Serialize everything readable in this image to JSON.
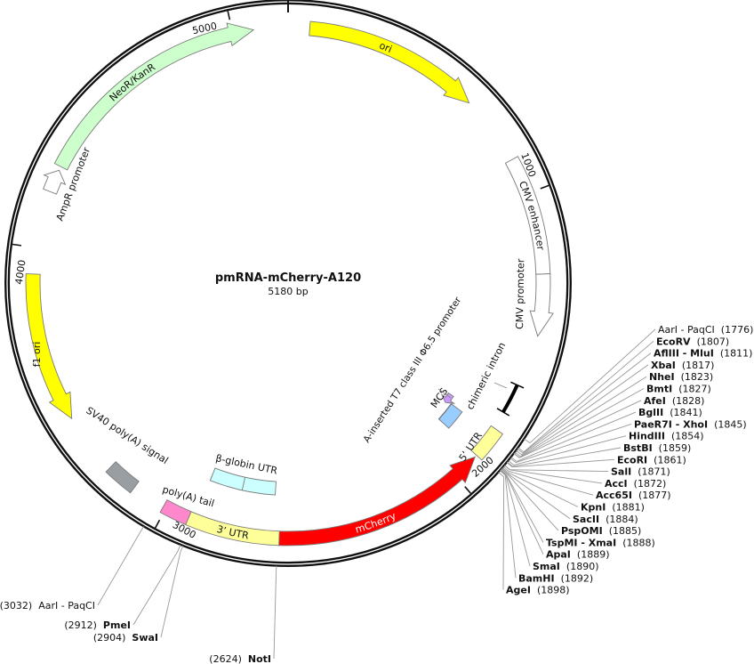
{
  "plasmid": {
    "name": "pmRNA-mCherry-A120",
    "length_label": "5180 bp",
    "length_bp": 5180
  },
  "ticks": [
    {
      "pos": 1000,
      "label": "1000"
    },
    {
      "pos": 2000,
      "label": "2000"
    },
    {
      "pos": 3000,
      "label": "3000"
    },
    {
      "pos": 4000,
      "label": "4000"
    },
    {
      "pos": 5000,
      "label": "5000"
    }
  ],
  "features": [
    {
      "id": "ori",
      "label": "ori",
      "start": 70,
      "end": 650,
      "direction": "forward",
      "color": "#ffff00",
      "text_color": "#111111"
    },
    {
      "id": "cmv-enhancer",
      "label": "CMV enhancer",
      "start": 880,
      "end": 1266,
      "direction": "none",
      "color": "#ffffff",
      "text_color": "#111111"
    },
    {
      "id": "cmv-promoter",
      "label": "CMV promoter",
      "start": 1266,
      "end": 1468,
      "direction": "forward",
      "color": "#ffffff",
      "text_color": "#111111"
    },
    {
      "id": "chimeric-intron",
      "label": "chimeric intron",
      "start": 1640,
      "end": 1740,
      "direction": "none",
      "color": "#000000",
      "text_color": "#111111"
    },
    {
      "id": "t7-promoter",
      "label": "A-inserted T7 class III Φ6.5 promoter",
      "start": 1790,
      "end": 1830,
      "direction": "forward",
      "color": "#cc99ff",
      "text_color": "#111111"
    },
    {
      "id": "mcs",
      "label": "MCS",
      "start": 1820,
      "end": 1900,
      "direction": "none",
      "color": "#99ccff",
      "text_color": "#111111"
    },
    {
      "id": "five-utr",
      "label": "5’ UTR",
      "start": 1800,
      "end": 1905,
      "direction": "none",
      "color": "#ffff99",
      "text_color": "#111111"
    },
    {
      "id": "mcherry",
      "label": "mCherry",
      "start": 1912,
      "end": 2619,
      "direction": "reverse",
      "color": "#ff0000",
      "text_color": "#ffffff"
    },
    {
      "id": "three-utr",
      "label": "3’ UTR",
      "start": 2619,
      "end": 2921,
      "direction": "none",
      "color": "#ffff99",
      "text_color": "#111111"
    },
    {
      "id": "beta-globin-utr",
      "label": "β-globin UTR",
      "start": 2640,
      "end": 2900,
      "direction": "none",
      "color": "#ccffff",
      "text_color": "#111111"
    },
    {
      "id": "polya-tail",
      "label": "poly(A) tail",
      "start": 2921,
      "end": 3010,
      "direction": "none",
      "color": "#ff88cc",
      "text_color": "#111111"
    },
    {
      "id": "sv40-polya",
      "label": "SV40 poly(A) signal",
      "start": 3122,
      "end": 3223,
      "direction": "none",
      "color": "#999ea3",
      "text_color": "#111111"
    },
    {
      "id": "f1-ori",
      "label": "f1 ori",
      "start": 3424,
      "end": 3914,
      "direction": "reverse",
      "color": "#ffff00",
      "text_color": "#111111"
    },
    {
      "id": "ampr-promoter",
      "label": "AmpR promoter",
      "start": 4187,
      "end": 4262,
      "direction": "forward",
      "color": "#ffffff",
      "text_color": "#111111"
    },
    {
      "id": "neor-kanr",
      "label": "NeoR/KanR",
      "start": 4275,
      "end": 5068,
      "direction": "forward",
      "color": "#ccffcc",
      "text_color": "#111111"
    }
  ],
  "enzymes_right": [
    {
      "name": "AarI - PaqCI",
      "pos": 1776,
      "pos_label": "(1776)",
      "bold": false
    },
    {
      "name": "EcoRV",
      "pos": 1807,
      "pos_label": "(1807)",
      "bold": true
    },
    {
      "name": "AflIII - MluI",
      "pos": 1811,
      "pos_label": "(1811)",
      "bold": true
    },
    {
      "name": "XbaI",
      "pos": 1817,
      "pos_label": "(1817)",
      "bold": true
    },
    {
      "name": "NheI",
      "pos": 1823,
      "pos_label": "(1823)",
      "bold": true
    },
    {
      "name": "BmtI",
      "pos": 1827,
      "pos_label": "(1827)",
      "bold": true
    },
    {
      "name": "AfeI",
      "pos": 1828,
      "pos_label": "(1828)",
      "bold": true
    },
    {
      "name": "BglII",
      "pos": 1841,
      "pos_label": "(1841)",
      "bold": true
    },
    {
      "name": "PaeR7I - XhoI",
      "pos": 1845,
      "pos_label": "(1845)",
      "bold": true
    },
    {
      "name": "HindIII",
      "pos": 1854,
      "pos_label": "(1854)",
      "bold": true
    },
    {
      "name": "BstBI",
      "pos": 1859,
      "pos_label": "(1859)",
      "bold": true
    },
    {
      "name": "EcoRI",
      "pos": 1861,
      "pos_label": "(1861)",
      "bold": true
    },
    {
      "name": "SalI",
      "pos": 1871,
      "pos_label": "(1871)",
      "bold": true
    },
    {
      "name": "AccI",
      "pos": 1872,
      "pos_label": "(1872)",
      "bold": true
    },
    {
      "name": "Acc65I",
      "pos": 1877,
      "pos_label": "(1877)",
      "bold": true
    },
    {
      "name": "KpnI",
      "pos": 1881,
      "pos_label": "(1881)",
      "bold": true
    },
    {
      "name": "SacII",
      "pos": 1884,
      "pos_label": "(1884)",
      "bold": true
    },
    {
      "name": "PspOMI",
      "pos": 1885,
      "pos_label": "(1885)",
      "bold": true
    },
    {
      "name": "TspMI - XmaI",
      "pos": 1888,
      "pos_label": "(1888)",
      "bold": true
    },
    {
      "name": "ApaI",
      "pos": 1889,
      "pos_label": "(1889)",
      "bold": true
    },
    {
      "name": "SmaI",
      "pos": 1890,
      "pos_label": "(1890)",
      "bold": true
    },
    {
      "name": "BamHI",
      "pos": 1892,
      "pos_label": "(1892)",
      "bold": true
    },
    {
      "name": "AgeI",
      "pos": 1898,
      "pos_label": "(1898)",
      "bold": true
    }
  ],
  "enzymes_bottom": [
    {
      "name": "AarI - PaqCI",
      "pos": 3032,
      "pos_label": "(3032)",
      "bold": false
    },
    {
      "name": "PmeI",
      "pos": 2912,
      "pos_label": "(2912)",
      "bold": true
    },
    {
      "name": "SwaI",
      "pos": 2904,
      "pos_label": "(2904)",
      "bold": true
    },
    {
      "name": "NotI",
      "pos": 2624,
      "pos_label": "(2624)",
      "bold": true
    }
  ]
}
